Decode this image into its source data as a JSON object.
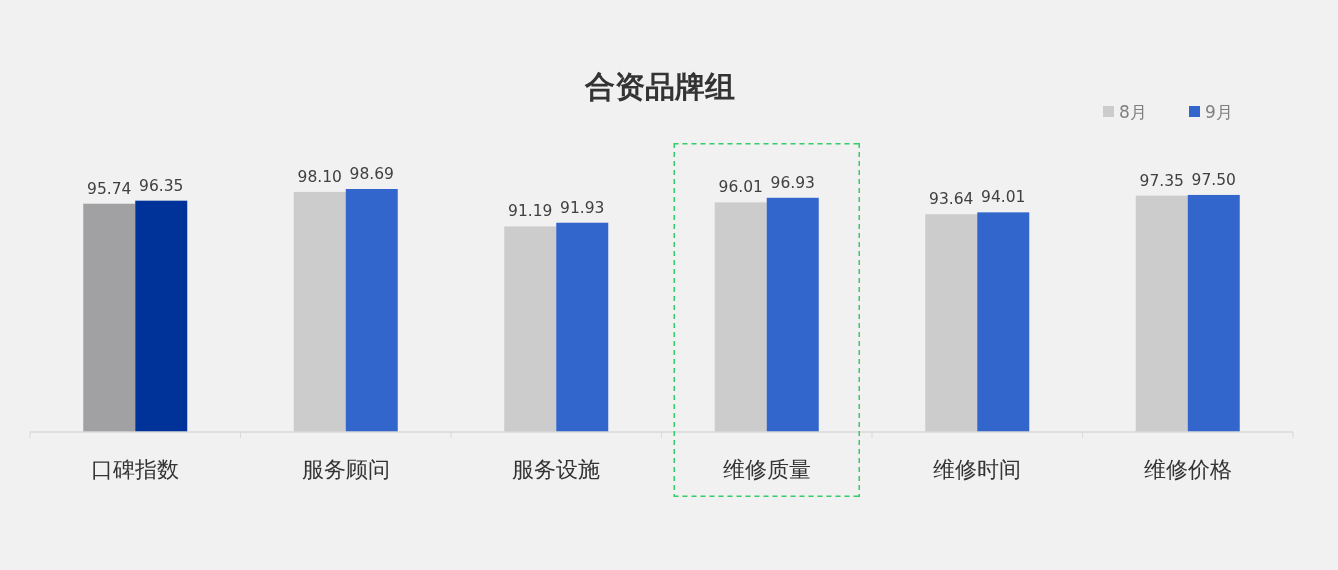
{
  "chart_data": {
    "type": "bar",
    "title": "合资品牌组",
    "categories": [
      "口碑指数",
      "服务顾问",
      "服务设施",
      "维修质量",
      "维修时间",
      "维修价格"
    ],
    "series": [
      {
        "name": "8月",
        "color": "#cccccc",
        "colors": [
          "#a1a1a4",
          "#cccccc",
          "#cccccc",
          "#cccccc",
          "#cccccc",
          "#cccccc"
        ],
        "values": [
          95.74,
          98.1,
          91.19,
          96.01,
          93.64,
          97.35
        ],
        "value_labels": [
          "95.74",
          "98.10",
          "91.19",
          "96.01",
          "93.64",
          "97.35"
        ]
      },
      {
        "name": "9月",
        "color": "#3366cc",
        "colors": [
          "#003399",
          "#3366cc",
          "#3366cc",
          "#3366cc",
          "#3366cc",
          "#3366cc"
        ],
        "values": [
          96.35,
          98.69,
          91.93,
          96.93,
          94.01,
          97.5
        ],
        "value_labels": [
          "96.35",
          "98.69",
          "91.93",
          "96.93",
          "94.01",
          "97.50"
        ]
      }
    ],
    "ylim": [
      50,
      98.69
    ],
    "tick_labels": "x",
    "legend": "top right"
  }
}
